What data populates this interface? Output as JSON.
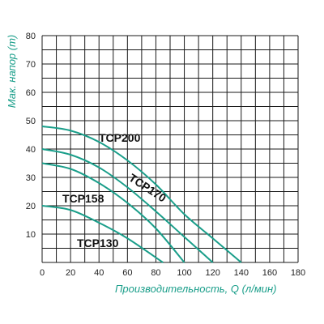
{
  "chart_data": {
    "type": "line",
    "title": "",
    "xlabel": "Производительность, Q (л/мин)",
    "ylabel": "Мак. напор (m)",
    "xlim": [
      0,
      180
    ],
    "ylim": [
      0,
      80
    ],
    "xticks": [
      0,
      20,
      40,
      60,
      80,
      100,
      120,
      140,
      160,
      180
    ],
    "yticks": [
      10,
      20,
      30,
      40,
      50,
      60,
      70,
      80
    ],
    "grid": true,
    "series": [
      {
        "name": "TCP200",
        "x": [
          0,
          20,
          40,
          60,
          80,
          100,
          120,
          140
        ],
        "y": [
          48,
          46.5,
          42.5,
          36,
          27.5,
          17,
          8.5,
          0
        ]
      },
      {
        "name": "TCP170",
        "x": [
          0,
          20,
          40,
          60,
          80,
          100,
          120
        ],
        "y": [
          40,
          38,
          33.5,
          26.5,
          18,
          9,
          0
        ]
      },
      {
        "name": "TCP158",
        "x": [
          0,
          20,
          40,
          60,
          80,
          100
        ],
        "y": [
          35,
          33,
          28,
          21,
          12,
          0
        ]
      },
      {
        "name": "TCP130",
        "x": [
          0,
          20,
          40,
          60,
          85
        ],
        "y": [
          20,
          18.5,
          14,
          8.5,
          0
        ]
      }
    ],
    "curve_labels": [
      "TCP200",
      "TCP170",
      "TCP158",
      "TCP130"
    ],
    "colors": {
      "curve": "#1a9e8a",
      "grid": "#1a1a1a",
      "axis_title": "#1a9e8a",
      "text": "#222222"
    }
  }
}
